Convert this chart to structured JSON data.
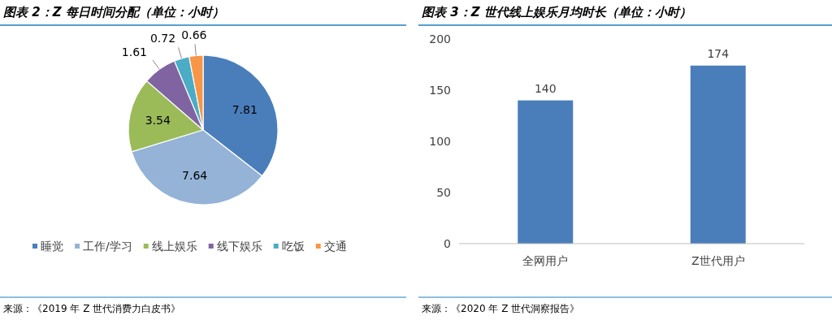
{
  "chart_data": [
    {
      "type": "pie",
      "title": "图表 2：Z 每日时间分配（单位：小时）",
      "categories": [
        "睡觉",
        "工作/学习",
        "线上娱乐",
        "线下娱乐",
        "吃饭",
        "交通"
      ],
      "values": [
        7.81,
        7.64,
        3.54,
        1.61,
        0.72,
        0.66
      ],
      "colors": [
        "#4a7ebb",
        "#95b3d7",
        "#9bbb59",
        "#8064a2",
        "#4bacc6",
        "#f79646"
      ],
      "data_labels": true,
      "legend": "bottom",
      "annotations": [
        "来源：《2019 年 Z 世代消费力白皮书》"
      ]
    },
    {
      "type": "bar",
      "title": "图表 3：Z 世代线上娱乐月均时长（单位：小时）",
      "categories": [
        "全网用户",
        "Z世代用户"
      ],
      "values": [
        140,
        174
      ],
      "color": "#4a7ebb",
      "ylim": [
        0,
        200
      ],
      "yticks": [
        0,
        50,
        100,
        150,
        200
      ],
      "data_labels": true,
      "grid": false,
      "annotations": [
        "来源：《2020 年 Z 世代洞察报告》"
      ]
    }
  ]
}
